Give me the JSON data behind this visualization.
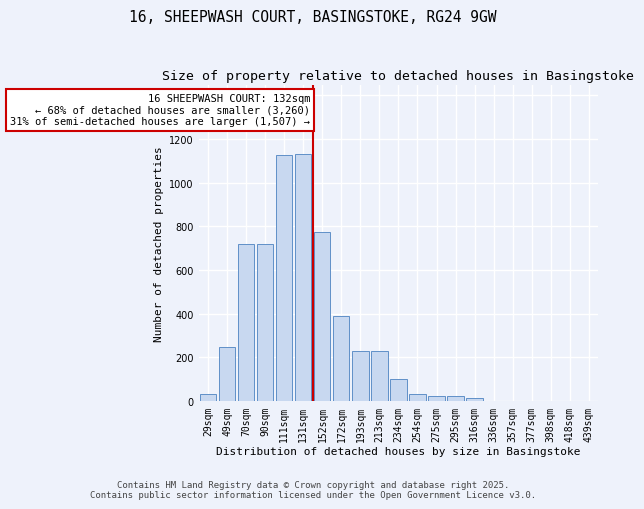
{
  "title_line1": "16, SHEEPWASH COURT, BASINGSTOKE, RG24 9GW",
  "title_line2": "Size of property relative to detached houses in Basingstoke",
  "xlabel": "Distribution of detached houses by size in Basingstoke",
  "ylabel": "Number of detached properties",
  "categories": [
    "29sqm",
    "49sqm",
    "70sqm",
    "90sqm",
    "111sqm",
    "131sqm",
    "152sqm",
    "172sqm",
    "193sqm",
    "213sqm",
    "234sqm",
    "254sqm",
    "275sqm",
    "295sqm",
    "316sqm",
    "336sqm",
    "357sqm",
    "377sqm",
    "398sqm",
    "418sqm",
    "439sqm"
  ],
  "values": [
    30,
    245,
    718,
    718,
    1125,
    1130,
    775,
    390,
    230,
    230,
    100,
    30,
    20,
    20,
    15,
    0,
    0,
    0,
    0,
    0,
    0
  ],
  "bar_color": "#c8d8f0",
  "bar_edge_color": "#6090c8",
  "vline_color": "#cc0000",
  "annotation_line1": "16 SHEEPWASH COURT: 132sqm",
  "annotation_line2": "← 68% of detached houses are smaller (3,260)",
  "annotation_line3": "31% of semi-detached houses are larger (1,507) →",
  "annotation_box_color": "#ffffff",
  "annotation_box_edge_color": "#cc0000",
  "ylim": [
    0,
    1450
  ],
  "yticks": [
    0,
    200,
    400,
    600,
    800,
    1000,
    1200,
    1400
  ],
  "background_color": "#eef2fb",
  "grid_color": "#ffffff",
  "footer_line1": "Contains HM Land Registry data © Crown copyright and database right 2025.",
  "footer_line2": "Contains public sector information licensed under the Open Government Licence v3.0.",
  "title_fontsize": 10.5,
  "subtitle_fontsize": 9.5,
  "axis_label_fontsize": 8,
  "tick_fontsize": 7,
  "annotation_fontsize": 7.5,
  "footer_fontsize": 6.5
}
